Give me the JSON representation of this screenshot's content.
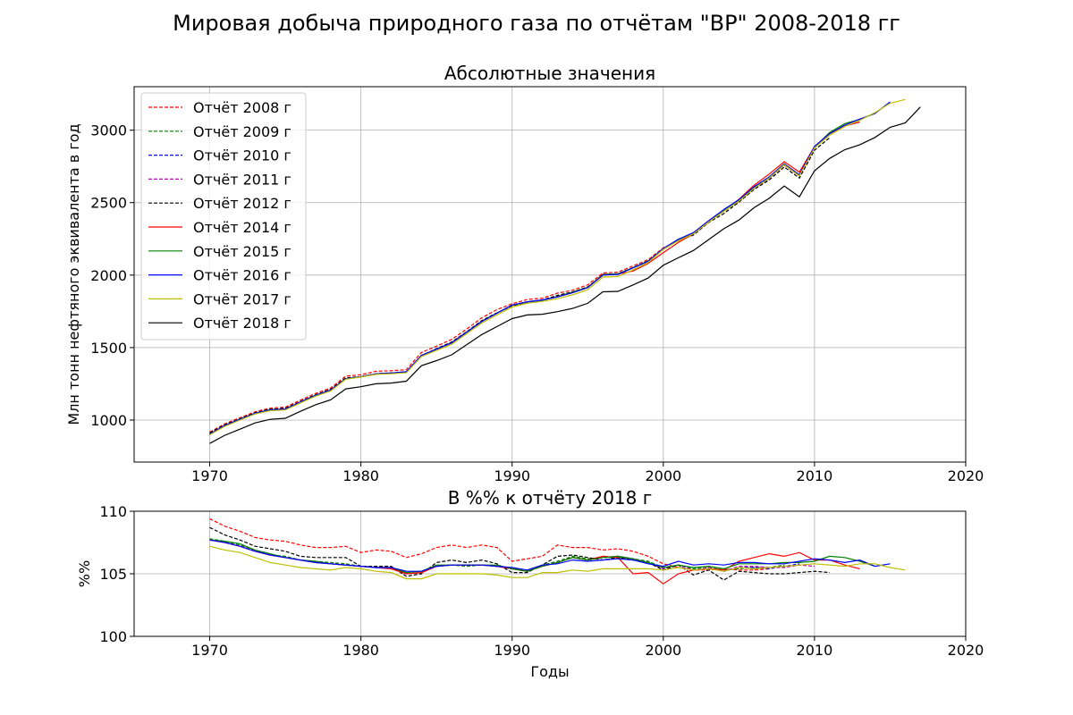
{
  "figure": {
    "title": "Мировая добыча природного газа по отчётам \"BP\" 2008-2018 гг"
  },
  "chart_data": [
    {
      "type": "line",
      "title": "Абсолютные значения",
      "xlabel": "",
      "ylabel": "Млн тонн нефтяного эквивалента в год",
      "xlim": [
        1965,
        2020
      ],
      "ylim": [
        710,
        3300
      ],
      "xticks": [
        1970,
        1980,
        1990,
        2000,
        2010,
        2020
      ],
      "yticks": [
        1000,
        1500,
        2000,
        2500,
        3000
      ],
      "grid": true,
      "legend_position": "upper-left",
      "series": [
        {
          "name": "Отчёт 2008 г",
          "color": "#ff0000",
          "dashed": true,
          "end": 2007
        },
        {
          "name": "Отчёт 2009 г",
          "color": "#008000",
          "dashed": true,
          "end": 2008
        },
        {
          "name": "Отчёт 2010 г",
          "color": "#0000ff",
          "dashed": true,
          "end": 2009
        },
        {
          "name": "Отчёт 2011 г",
          "color": "#bf00bf",
          "dashed": true,
          "end": 2010
        },
        {
          "name": "Отчёт 2012 г",
          "color": "#000000",
          "dashed": true,
          "end": 2011
        },
        {
          "name": "Отчёт 2014 г",
          "color": "#ff0000",
          "dashed": false,
          "end": 2013
        },
        {
          "name": "Отчёт 2015 г",
          "color": "#008000",
          "dashed": false,
          "end": 2014
        },
        {
          "name": "Отчёт 2016 г",
          "color": "#0000ff",
          "dashed": false,
          "end": 2015
        },
        {
          "name": "Отчёт 2017 г",
          "color": "#bfbf00",
          "dashed": false,
          "end": 2016
        },
        {
          "name": "Отчёт 2018 г",
          "color": "#000000",
          "dashed": false,
          "end": 2017
        }
      ],
      "x": [
        1970,
        1971,
        1972,
        1973,
        1974,
        1975,
        1976,
        1977,
        1978,
        1979,
        1980,
        1981,
        1982,
        1983,
        1984,
        1985,
        1986,
        1987,
        1988,
        1989,
        1990,
        1991,
        1992,
        1993,
        1994,
        1995,
        1996,
        1997,
        1998,
        1999,
        2000,
        2001,
        2002,
        2003,
        2004,
        2005,
        2006,
        2007,
        2008,
        2009,
        2010,
        2011,
        2012,
        2013,
        2014,
        2015,
        2016,
        2017
      ],
      "base_2018": [
        838,
        895,
        937,
        980,
        1005,
        1012,
        1060,
        1105,
        1140,
        1215,
        1230,
        1250,
        1255,
        1268,
        1375,
        1410,
        1450,
        1520,
        1590,
        1645,
        1700,
        1725,
        1730,
        1748,
        1770,
        1805,
        1885,
        1888,
        1932,
        1980,
        2068,
        2120,
        2170,
        2245,
        2320,
        2380,
        2465,
        2530,
        2615,
        2540,
        2720,
        2805,
        2865,
        2900,
        2950,
        3020,
        3050,
        3160
      ]
    },
    {
      "type": "line",
      "title": "В %% к отчёту 2018 г",
      "xlabel": "Годы",
      "ylabel": "%%",
      "xlim": [
        1965,
        2020
      ],
      "ylim": [
        100,
        110
      ],
      "xticks": [
        1970,
        1980,
        1990,
        2000,
        2010,
        2020
      ],
      "yticks": [
        100,
        105,
        110
      ],
      "grid": true,
      "series": [
        {
          "name": "Отчёт 2008 г",
          "x": [
            1970,
            1971,
            1972,
            1973,
            1974,
            1975,
            1976,
            1977,
            1978,
            1979,
            1980,
            1981,
            1982,
            1983,
            1984,
            1985,
            1986,
            1987,
            1988,
            1989,
            1990,
            1991,
            1992,
            1993,
            1994,
            1995,
            1996,
            1997,
            1998,
            1999,
            2000,
            2001,
            2002,
            2003,
            2004,
            2005,
            2006,
            2007
          ],
          "values": [
            109.4,
            108.8,
            108.4,
            107.9,
            107.7,
            107.6,
            107.3,
            107.1,
            107.1,
            107.2,
            106.7,
            106.9,
            106.8,
            106.3,
            106.6,
            107.1,
            107.3,
            107.1,
            107.3,
            107.1,
            106.0,
            106.2,
            106.4,
            107.3,
            107.1,
            107.1,
            106.9,
            107.0,
            106.8,
            106.4,
            105.8,
            105.5,
            105.3,
            105.3,
            105.4,
            105.3,
            105.3,
            105.4
          ]
        },
        {
          "name": "Отчёт 2009 г",
          "x": [
            1970,
            1971,
            1972,
            1973,
            1974,
            1975,
            1976,
            1977,
            1978,
            1979,
            1980,
            1981,
            1982,
            1983,
            1984,
            1985,
            1986,
            1987,
            1988,
            1989,
            1990,
            1991,
            1992,
            1993,
            1994,
            1995,
            1996,
            1997,
            1998,
            1999,
            2000,
            2001,
            2002,
            2003,
            2004,
            2005,
            2006,
            2007,
            2008
          ],
          "values": [
            107.8,
            107.6,
            107.3,
            106.9,
            106.5,
            106.4,
            106.1,
            106.0,
            105.9,
            105.8,
            105.6,
            105.5,
            105.5,
            105.0,
            105.1,
            105.6,
            105.7,
            105.6,
            105.7,
            105.6,
            105.4,
            105.3,
            105.7,
            106.0,
            106.4,
            106.2,
            106.3,
            106.3,
            106.2,
            106.0,
            105.5,
            105.7,
            105.4,
            105.5,
            105.3,
            105.4,
            105.5,
            105.5,
            105.7
          ]
        },
        {
          "name": "Отчёт 2010 г",
          "x": [
            1970,
            1971,
            1972,
            1973,
            1974,
            1975,
            1976,
            1977,
            1978,
            1979,
            1980,
            1981,
            1982,
            1983,
            1984,
            1985,
            1986,
            1987,
            1988,
            1989,
            1990,
            1991,
            1992,
            1993,
            1994,
            1995,
            1996,
            1997,
            1998,
            1999,
            2000,
            2001,
            2002,
            2003,
            2004,
            2005,
            2006,
            2007,
            2008,
            2009
          ],
          "values": [
            107.7,
            107.5,
            107.2,
            106.8,
            106.5,
            106.3,
            106.1,
            105.9,
            105.8,
            105.7,
            105.6,
            105.5,
            105.4,
            105.0,
            105.1,
            105.6,
            105.7,
            105.7,
            105.7,
            105.6,
            105.4,
            105.2,
            105.6,
            105.9,
            106.3,
            106.1,
            106.3,
            106.4,
            106.2,
            105.9,
            105.4,
            105.7,
            105.3,
            105.5,
            105.2,
            105.5,
            105.5,
            105.4,
            105.6,
            105.8
          ]
        },
        {
          "name": "Отчёт 2011 г",
          "x": [
            1970,
            1971,
            1972,
            1973,
            1974,
            1975,
            1976,
            1977,
            1978,
            1979,
            1980,
            1981,
            1982,
            1983,
            1984,
            1985,
            1986,
            1987,
            1988,
            1989,
            1990,
            1991,
            1992,
            1993,
            1994,
            1995,
            1996,
            1997,
            1998,
            1999,
            2000,
            2001,
            2002,
            2003,
            2004,
            2005,
            2006,
            2007,
            2008,
            2009,
            2010
          ],
          "values": [
            107.7,
            107.5,
            107.2,
            106.8,
            106.5,
            106.3,
            106.1,
            105.9,
            105.8,
            105.7,
            105.6,
            105.5,
            105.4,
            105.0,
            105.1,
            105.6,
            105.7,
            105.7,
            105.7,
            105.6,
            105.4,
            105.2,
            105.6,
            105.9,
            106.3,
            106.1,
            106.3,
            106.4,
            106.2,
            105.9,
            105.4,
            105.7,
            105.3,
            105.5,
            105.2,
            105.6,
            105.6,
            105.5,
            105.5,
            105.7,
            105.6
          ]
        },
        {
          "name": "Отчёт 2012 г",
          "x": [
            1970,
            1971,
            1972,
            1973,
            1974,
            1975,
            1976,
            1977,
            1978,
            1979,
            1980,
            1981,
            1982,
            1983,
            1984,
            1985,
            1986,
            1987,
            1988,
            1989,
            1990,
            1991,
            1992,
            1993,
            1994,
            1995,
            1996,
            1997,
            1998,
            1999,
            2000,
            2001,
            2002,
            2003,
            2004,
            2005,
            2006,
            2007,
            2008,
            2009,
            2010,
            2011
          ],
          "values": [
            108.7,
            108.1,
            107.7,
            107.2,
            107.0,
            106.8,
            106.4,
            106.3,
            106.3,
            106.3,
            105.6,
            105.6,
            105.6,
            104.8,
            105.0,
            105.9,
            106.1,
            105.9,
            106.1,
            105.8,
            105.1,
            105.1,
            105.7,
            106.4,
            106.5,
            106.3,
            106.1,
            106.3,
            106.1,
            105.9,
            105.3,
            105.7,
            104.9,
            105.3,
            104.5,
            105.2,
            105.1,
            105.0,
            105.0,
            105.1,
            105.2,
            105.1
          ]
        },
        {
          "name": "Отчёт 2014 г",
          "x": [
            1970,
            1971,
            1972,
            1973,
            1974,
            1975,
            1976,
            1977,
            1978,
            1979,
            1980,
            1981,
            1982,
            1983,
            1984,
            1985,
            1986,
            1987,
            1988,
            1989,
            1990,
            1991,
            1992,
            1993,
            1994,
            1995,
            1996,
            1997,
            1998,
            1999,
            2000,
            2001,
            2002,
            2003,
            2004,
            2005,
            2006,
            2007,
            2008,
            2009,
            2010,
            2011,
            2012,
            2013
          ],
          "values": [
            107.7,
            107.5,
            107.2,
            106.8,
            106.5,
            106.3,
            106.1,
            105.9,
            105.8,
            105.7,
            105.6,
            105.5,
            105.4,
            105.0,
            105.1,
            105.6,
            105.7,
            105.7,
            105.7,
            105.6,
            105.4,
            105.2,
            105.6,
            105.9,
            106.3,
            106.1,
            106.4,
            106.3,
            105.0,
            105.1,
            104.2,
            105.0,
            105.3,
            105.4,
            105.3,
            106.0,
            106.3,
            106.6,
            106.4,
            106.7,
            106.1,
            106.1,
            105.7,
            105.4
          ]
        },
        {
          "name": "Отчёт 2015 г",
          "x": [
            1970,
            1971,
            1972,
            1973,
            1974,
            1975,
            1976,
            1977,
            1978,
            1979,
            1980,
            1981,
            1982,
            1983,
            1984,
            1985,
            1986,
            1987,
            1988,
            1989,
            1990,
            1991,
            1992,
            1993,
            1994,
            1995,
            1996,
            1997,
            1998,
            1999,
            2000,
            2001,
            2002,
            2003,
            2004,
            2005,
            2006,
            2007,
            2008,
            2009,
            2010,
            2011,
            2012,
            2013,
            2014
          ],
          "values": [
            107.7,
            107.6,
            107.4,
            106.9,
            106.6,
            106.3,
            106.1,
            106.0,
            105.8,
            105.7,
            105.6,
            105.5,
            105.5,
            105.1,
            105.2,
            105.7,
            105.7,
            105.7,
            105.7,
            105.7,
            105.4,
            105.2,
            105.6,
            105.9,
            106.3,
            106.1,
            106.3,
            106.4,
            106.2,
            105.9,
            105.5,
            105.7,
            105.5,
            105.6,
            105.4,
            105.8,
            105.8,
            105.8,
            105.9,
            105.9,
            106.0,
            106.4,
            106.3,
            106.0,
            105.6
          ]
        },
        {
          "name": "Отчёт 2016 г",
          "x": [
            1970,
            1971,
            1972,
            1973,
            1974,
            1975,
            1976,
            1977,
            1978,
            1979,
            1980,
            1981,
            1982,
            1983,
            1984,
            1985,
            1986,
            1987,
            1988,
            1989,
            1990,
            1991,
            1992,
            1993,
            1994,
            1995,
            1996,
            1997,
            1998,
            1999,
            2000,
            2001,
            2002,
            2003,
            2004,
            2005,
            2006,
            2007,
            2008,
            2009,
            2010,
            2011,
            2012,
            2013,
            2014,
            2015
          ],
          "values": [
            107.7,
            107.5,
            107.2,
            106.8,
            106.5,
            106.3,
            106.1,
            105.9,
            105.8,
            105.7,
            105.6,
            105.5,
            105.5,
            105.2,
            105.2,
            105.6,
            105.7,
            105.7,
            105.7,
            105.6,
            105.5,
            105.3,
            105.7,
            105.8,
            106.1,
            106.0,
            106.1,
            106.2,
            106.1,
            105.8,
            105.6,
            106.0,
            105.7,
            105.8,
            105.7,
            105.9,
            105.9,
            105.8,
            105.8,
            106.0,
            106.2,
            106.1,
            105.9,
            106.1,
            105.6,
            105.8
          ]
        },
        {
          "name": "Отчёт 2017 г",
          "x": [
            1970,
            1971,
            1972,
            1973,
            1974,
            1975,
            1976,
            1977,
            1978,
            1979,
            1980,
            1981,
            1982,
            1983,
            1984,
            1985,
            1986,
            1987,
            1988,
            1989,
            1990,
            1991,
            1992,
            1993,
            1994,
            1995,
            1996,
            1997,
            1998,
            1999,
            2000,
            2001,
            2002,
            2003,
            2004,
            2005,
            2006,
            2007,
            2008,
            2009,
            2010,
            2011,
            2012,
            2013,
            2014,
            2015,
            2016
          ],
          "values": [
            107.2,
            106.9,
            106.7,
            106.3,
            105.9,
            105.7,
            105.5,
            105.4,
            105.3,
            105.5,
            105.4,
            105.2,
            105.1,
            104.6,
            104.6,
            105.0,
            105.0,
            105.0,
            105.0,
            104.9,
            104.7,
            104.7,
            105.1,
            105.1,
            105.3,
            105.2,
            105.4,
            105.4,
            105.4,
            105.4,
            105.3,
            105.5,
            105.3,
            105.4,
            105.2,
            105.5,
            105.4,
            105.5,
            105.6,
            105.7,
            105.8,
            105.7,
            105.6,
            105.8,
            105.8,
            105.5,
            105.3
          ]
        }
      ]
    }
  ]
}
